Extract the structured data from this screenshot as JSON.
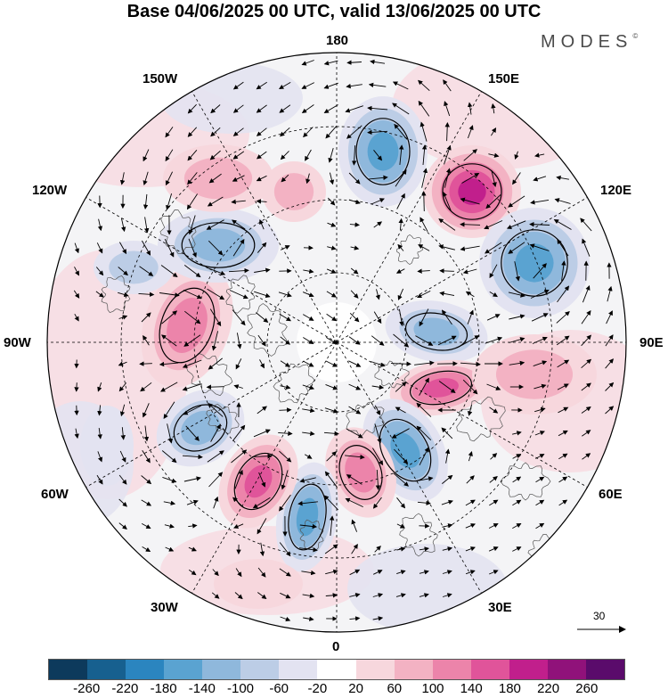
{
  "title": "Base 04/06/2025 00 UTC, valid 13/06/2025 00 UTC",
  "brand": "MODES",
  "brand_mark": "©",
  "longitude_labels": {
    "top": "180",
    "bottom": "0",
    "left": "90W",
    "right": "90E",
    "upper_left": "150W",
    "upper_right": "150E",
    "mid_upper_left": "120W",
    "mid_upper_right": "120E",
    "mid_lower_left": "60W",
    "mid_lower_right": "60E",
    "lower_left": "30W",
    "lower_right": "30E"
  },
  "reference_vector": "30",
  "colorbar": {
    "colors": [
      "#0d3a5c",
      "#17608f",
      "#2b85bf",
      "#5aa3d1",
      "#8fb8dc",
      "#bccde6",
      "#e3e3f1",
      "#ffffff",
      "#f7d7dd",
      "#f3b2c3",
      "#ec84aa",
      "#e0549a",
      "#c11f8c",
      "#90127a",
      "#5a0b6b"
    ],
    "tick_labels": [
      "-260",
      "-220",
      "-180",
      "-140",
      "-100",
      "-60",
      "-20",
      "20",
      "60",
      "100",
      "140",
      "180",
      "220",
      "260"
    ]
  }
}
